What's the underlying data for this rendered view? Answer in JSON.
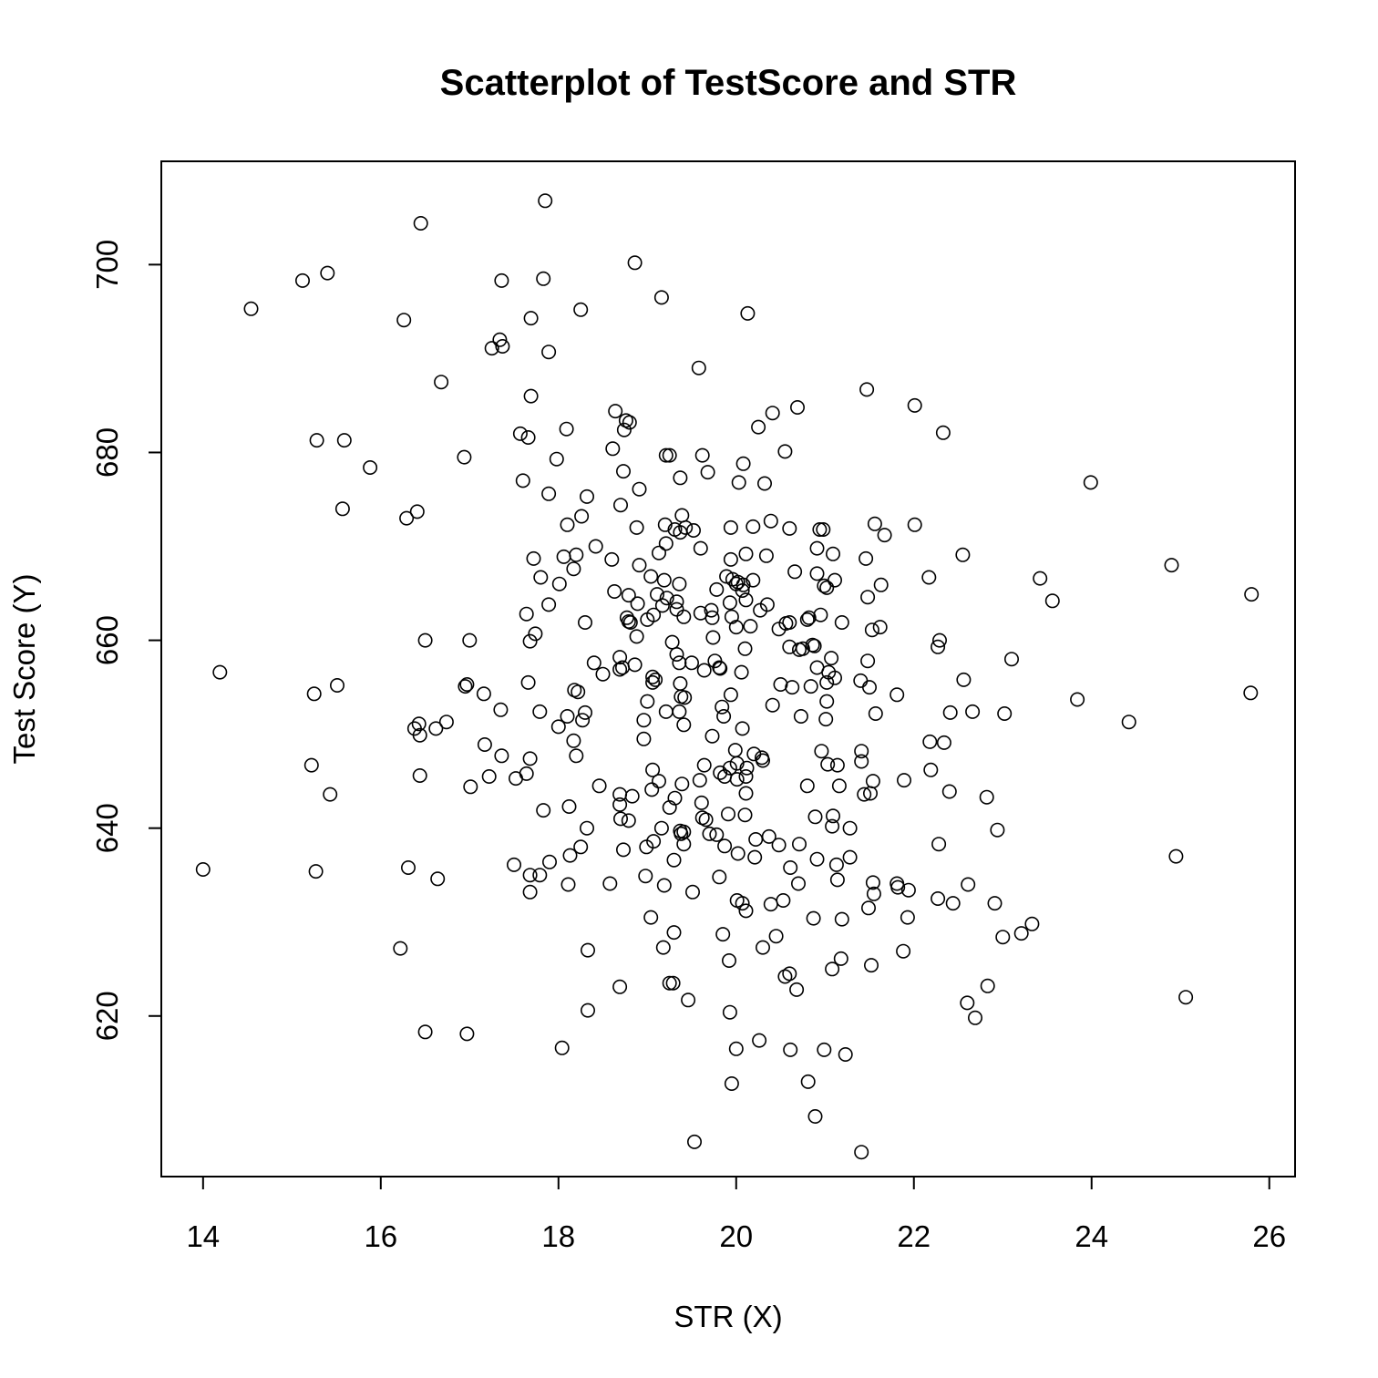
{
  "chart_data": {
    "type": "scatter",
    "title": "Scatterplot of TestScore and STR",
    "xlabel": "STR (X)",
    "ylabel": "Test Score (Y)",
    "xlim": [
      13.53,
      26.29
    ],
    "ylim": [
      602.9,
      711.0
    ],
    "xticks": [
      14,
      16,
      18,
      20,
      22,
      24,
      26
    ],
    "yticks": [
      620,
      640,
      660,
      680,
      700
    ],
    "grid": false,
    "legend": "none",
    "points": [
      [
        17.85,
        706.8
      ],
      [
        16.45,
        704.4
      ],
      [
        18.86,
        700.2
      ],
      [
        15.4,
        699.1
      ],
      [
        15.12,
        698.3
      ],
      [
        17.36,
        698.3
      ],
      [
        17.83,
        698.5
      ],
      [
        19.16,
        696.5
      ],
      [
        14.54,
        695.3
      ],
      [
        18.25,
        695.2
      ],
      [
        20.13,
        694.8
      ],
      [
        16.26,
        694.1
      ],
      [
        17.69,
        694.3
      ],
      [
        17.34,
        692.0
      ],
      [
        17.25,
        691.1
      ],
      [
        17.37,
        691.3
      ],
      [
        17.89,
        690.7
      ],
      [
        19.58,
        689.0
      ],
      [
        16.68,
        687.5
      ],
      [
        21.47,
        686.7
      ],
      [
        17.69,
        686.0
      ],
      [
        22.01,
        685.0
      ],
      [
        20.69,
        684.8
      ],
      [
        18.64,
        684.4
      ],
      [
        20.41,
        684.2
      ],
      [
        18.8,
        683.2
      ],
      [
        18.76,
        683.4
      ],
      [
        18.74,
        682.4
      ],
      [
        20.25,
        682.7
      ],
      [
        22.33,
        682.1
      ],
      [
        18.09,
        682.5
      ],
      [
        17.57,
        682.0
      ],
      [
        17.66,
        681.6
      ],
      [
        15.28,
        681.3
      ],
      [
        15.59,
        681.3
      ],
      [
        18.61,
        680.4
      ],
      [
        20.55,
        680.1
      ],
      [
        19.21,
        679.7
      ],
      [
        19.25,
        679.7
      ],
      [
        19.62,
        679.7
      ],
      [
        16.94,
        679.5
      ],
      [
        17.98,
        679.3
      ],
      [
        20.08,
        678.8
      ],
      [
        15.88,
        678.4
      ],
      [
        18.73,
        678.0
      ],
      [
        19.68,
        677.9
      ],
      [
        17.6,
        677.0
      ],
      [
        19.37,
        677.3
      ],
      [
        20.03,
        676.8
      ],
      [
        20.32,
        676.7
      ],
      [
        23.99,
        676.8
      ],
      [
        18.91,
        676.1
      ],
      [
        17.89,
        675.6
      ],
      [
        18.32,
        675.3
      ],
      [
        19.39,
        673.3
      ],
      [
        15.57,
        674.0
      ],
      [
        16.41,
        673.7
      ],
      [
        16.29,
        673.0
      ],
      [
        18.26,
        673.2
      ],
      [
        18.7,
        674.4
      ],
      [
        20.39,
        672.7
      ],
      [
        18.1,
        672.3
      ],
      [
        19.2,
        672.3
      ],
      [
        19.31,
        671.8
      ],
      [
        19.37,
        671.5
      ],
      [
        19.43,
        672.0
      ],
      [
        19.52,
        671.7
      ],
      [
        19.94,
        672.0
      ],
      [
        20.19,
        672.1
      ],
      [
        20.6,
        671.9
      ],
      [
        20.94,
        671.8
      ],
      [
        20.98,
        671.8
      ],
      [
        21.56,
        672.4
      ],
      [
        22.01,
        672.3
      ],
      [
        18.88,
        672.0
      ],
      [
        21.67,
        671.2
      ],
      [
        18.42,
        670.0
      ],
      [
        19.21,
        670.3
      ],
      [
        19.6,
        669.8
      ],
      [
        20.34,
        669.0
      ],
      [
        20.11,
        669.2
      ],
      [
        18.06,
        668.9
      ],
      [
        18.2,
        669.1
      ],
      [
        18.6,
        668.6
      ],
      [
        18.91,
        668.0
      ],
      [
        19.13,
        669.3
      ],
      [
        19.94,
        668.6
      ],
      [
        20.91,
        669.8
      ],
      [
        21.09,
        669.2
      ],
      [
        21.46,
        668.7
      ],
      [
        22.55,
        669.1
      ],
      [
        24.9,
        668.0
      ],
      [
        17.72,
        668.7
      ],
      [
        18.17,
        667.6
      ],
      [
        19.89,
        666.8
      ],
      [
        19.96,
        666.5
      ],
      [
        20.02,
        666.2
      ],
      [
        20.08,
        665.9
      ],
      [
        20.19,
        666.4
      ],
      [
        20.66,
        667.3
      ],
      [
        20.91,
        667.1
      ],
      [
        21.11,
        666.4
      ],
      [
        17.8,
        666.7
      ],
      [
        19.04,
        666.8
      ],
      [
        19.19,
        666.4
      ],
      [
        19.36,
        666.0
      ],
      [
        19.78,
        665.4
      ],
      [
        20.0,
        666.0
      ],
      [
        20.07,
        665.3
      ],
      [
        20.99,
        665.8
      ],
      [
        21.02,
        665.6
      ],
      [
        21.63,
        665.9
      ],
      [
        22.17,
        666.7
      ],
      [
        23.42,
        666.6
      ],
      [
        18.01,
        666.0
      ],
      [
        18.63,
        665.2
      ],
      [
        18.79,
        664.8
      ],
      [
        19.11,
        664.9
      ],
      [
        19.22,
        664.5
      ],
      [
        19.33,
        664.1
      ],
      [
        20.11,
        664.3
      ],
      [
        20.35,
        663.8
      ],
      [
        21.48,
        664.6
      ],
      [
        23.56,
        664.2
      ],
      [
        25.8,
        664.9
      ],
      [
        17.89,
        663.8
      ],
      [
        18.89,
        663.9
      ],
      [
        19.17,
        663.7
      ],
      [
        19.72,
        663.2
      ],
      [
        19.93,
        664.0
      ],
      [
        20.27,
        663.2
      ],
      [
        19.6,
        662.9
      ],
      [
        19.0,
        662.2
      ],
      [
        18.77,
        662.4
      ],
      [
        18.79,
        662.0
      ],
      [
        18.81,
        661.9
      ],
      [
        17.64,
        662.8
      ],
      [
        18.3,
        661.9
      ],
      [
        18.88,
        660.4
      ],
      [
        19.07,
        662.7
      ],
      [
        19.33,
        663.3
      ],
      [
        19.41,
        662.5
      ],
      [
        19.73,
        662.4
      ],
      [
        19.95,
        662.5
      ],
      [
        20.0,
        661.4
      ],
      [
        20.16,
        661.5
      ],
      [
        20.48,
        661.2
      ],
      [
        20.56,
        661.8
      ],
      [
        20.6,
        661.9
      ],
      [
        20.8,
        662.2
      ],
      [
        20.82,
        662.4
      ],
      [
        20.95,
        662.7
      ],
      [
        21.19,
        661.9
      ],
      [
        21.53,
        661.1
      ],
      [
        21.62,
        661.4
      ],
      [
        22.29,
        660.0
      ],
      [
        22.27,
        659.3
      ],
      [
        19.74,
        660.3
      ],
      [
        17.74,
        660.7
      ],
      [
        17.68,
        659.9
      ],
      [
        17.0,
        660.0
      ],
      [
        16.5,
        660.0
      ],
      [
        14.19,
        656.6
      ],
      [
        16.95,
        655.1
      ],
      [
        16.97,
        655.3
      ],
      [
        17.16,
        654.3
      ],
      [
        15.25,
        654.3
      ],
      [
        15.51,
        655.2
      ],
      [
        17.66,
        655.5
      ],
      [
        18.18,
        654.7
      ],
      [
        18.22,
        654.5
      ],
      [
        19.06,
        655.5
      ],
      [
        19.06,
        656.1
      ],
      [
        19.09,
        655.8
      ],
      [
        19.37,
        655.4
      ],
      [
        19.38,
        654.0
      ],
      [
        19.64,
        656.8
      ],
      [
        19.76,
        657.8
      ],
      [
        19.82,
        657.0
      ],
      [
        19.94,
        654.2
      ],
      [
        20.06,
        656.6
      ],
      [
        20.5,
        655.3
      ],
      [
        20.63,
        655.0
      ],
      [
        20.84,
        655.1
      ],
      [
        20.91,
        657.1
      ],
      [
        21.02,
        655.5
      ],
      [
        21.04,
        656.6
      ],
      [
        21.11,
        656.0
      ],
      [
        21.4,
        655.7
      ],
      [
        21.48,
        657.8
      ],
      [
        21.5,
        655.0
      ],
      [
        21.81,
        654.2
      ],
      [
        22.56,
        655.8
      ],
      [
        23.1,
        658.0
      ],
      [
        23.84,
        653.7
      ],
      [
        25.79,
        654.4
      ],
      [
        18.4,
        657.6
      ],
      [
        18.5,
        656.4
      ],
      [
        18.69,
        656.9
      ],
      [
        18.72,
        657.1
      ],
      [
        18.69,
        658.2
      ],
      [
        18.86,
        657.4
      ],
      [
        19.28,
        659.8
      ],
      [
        19.33,
        658.5
      ],
      [
        19.36,
        657.6
      ],
      [
        19.5,
        657.6
      ],
      [
        19.81,
        657.1
      ],
      [
        20.1,
        659.1
      ],
      [
        20.6,
        659.3
      ],
      [
        20.71,
        659.0
      ],
      [
        20.75,
        659.1
      ],
      [
        20.86,
        659.5
      ],
      [
        20.88,
        659.4
      ],
      [
        21.07,
        658.1
      ],
      [
        19.0,
        653.5
      ],
      [
        19.21,
        652.4
      ],
      [
        19.42,
        653.9
      ],
      [
        19.84,
        652.9
      ],
      [
        20.41,
        653.1
      ],
      [
        20.73,
        651.9
      ],
      [
        21.02,
        653.5
      ],
      [
        21.57,
        652.2
      ],
      [
        22.41,
        652.3
      ],
      [
        22.66,
        652.4
      ],
      [
        23.02,
        652.2
      ],
      [
        24.42,
        651.3
      ],
      [
        18.3,
        652.3
      ],
      [
        18.27,
        651.5
      ],
      [
        18.1,
        651.9
      ],
      [
        17.35,
        652.6
      ],
      [
        17.79,
        652.4
      ],
      [
        16.74,
        651.3
      ],
      [
        16.43,
        651.1
      ],
      [
        16.38,
        650.6
      ],
      [
        16.44,
        649.9
      ],
      [
        16.62,
        650.6
      ],
      [
        18.0,
        650.8
      ],
      [
        18.96,
        651.5
      ],
      [
        19.36,
        652.4
      ],
      [
        19.41,
        651.0
      ],
      [
        19.86,
        651.9
      ],
      [
        20.07,
        650.6
      ],
      [
        21.01,
        651.6
      ],
      [
        17.17,
        648.9
      ],
      [
        17.36,
        647.7
      ],
      [
        17.68,
        647.4
      ],
      [
        18.2,
        647.7
      ],
      [
        18.17,
        649.3
      ],
      [
        18.96,
        649.5
      ],
      [
        19.06,
        646.2
      ],
      [
        19.13,
        645.0
      ],
      [
        19.73,
        649.8
      ],
      [
        19.99,
        648.3
      ],
      [
        20.12,
        646.4
      ],
      [
        20.2,
        647.9
      ],
      [
        20.29,
        647.5
      ],
      [
        20.3,
        647.2
      ],
      [
        20.96,
        648.2
      ],
      [
        21.03,
        646.8
      ],
      [
        21.14,
        646.7
      ],
      [
        21.41,
        648.2
      ],
      [
        21.41,
        647.1
      ],
      [
        22.18,
        649.2
      ],
      [
        22.34,
        649.1
      ],
      [
        20.01,
        646.9
      ],
      [
        19.93,
        646.4
      ],
      [
        19.64,
        646.7
      ],
      [
        19.87,
        645.5
      ],
      [
        20.01,
        645.2
      ],
      [
        20.11,
        645.5
      ],
      [
        21.54,
        645.0
      ],
      [
        21.16,
        644.5
      ],
      [
        20.8,
        644.5
      ],
      [
        17.64,
        645.8
      ],
      [
        17.22,
        645.5
      ],
      [
        17.52,
        645.3
      ],
      [
        16.44,
        645.6
      ],
      [
        15.22,
        646.7
      ],
      [
        17.01,
        644.4
      ],
      [
        18.46,
        644.5
      ],
      [
        19.39,
        644.7
      ],
      [
        19.59,
        645.1
      ],
      [
        21.89,
        645.1
      ],
      [
        22.19,
        646.2
      ],
      [
        15.43,
        643.6
      ],
      [
        18.69,
        643.6
      ],
      [
        18.83,
        643.4
      ],
      [
        18.69,
        642.5
      ],
      [
        19.05,
        644.1
      ],
      [
        19.25,
        642.2
      ],
      [
        19.31,
        643.2
      ],
      [
        19.61,
        642.7
      ],
      [
        19.82,
        645.9
      ],
      [
        20.11,
        643.7
      ],
      [
        21.44,
        643.6
      ],
      [
        21.51,
        643.7
      ],
      [
        22.4,
        643.9
      ],
      [
        22.82,
        643.3
      ],
      [
        17.83,
        641.9
      ],
      [
        18.12,
        642.3
      ],
      [
        18.7,
        641.0
      ],
      [
        18.79,
        640.8
      ],
      [
        19.62,
        641.1
      ],
      [
        19.66,
        640.9
      ],
      [
        19.91,
        641.5
      ],
      [
        20.1,
        641.4
      ],
      [
        20.89,
        641.2
      ],
      [
        21.09,
        641.3
      ],
      [
        19.16,
        640.0
      ],
      [
        19.37,
        639.7
      ],
      [
        19.38,
        639.4
      ],
      [
        19.41,
        639.6
      ],
      [
        19.7,
        639.4
      ],
      [
        19.78,
        639.3
      ],
      [
        20.22,
        638.8
      ],
      [
        20.37,
        639.1
      ],
      [
        20.48,
        638.2
      ],
      [
        20.71,
        638.3
      ],
      [
        21.08,
        640.2
      ],
      [
        21.28,
        640.0
      ],
      [
        22.94,
        639.8
      ],
      [
        18.32,
        640.0
      ],
      [
        17.9,
        636.4
      ],
      [
        18.13,
        637.1
      ],
      [
        18.25,
        638.0
      ],
      [
        18.73,
        637.7
      ],
      [
        18.99,
        638.0
      ],
      [
        19.07,
        638.6
      ],
      [
        19.3,
        636.6
      ],
      [
        19.41,
        638.3
      ],
      [
        19.87,
        638.1
      ],
      [
        20.02,
        637.3
      ],
      [
        20.21,
        636.9
      ],
      [
        20.61,
        635.8
      ],
      [
        20.91,
        636.7
      ],
      [
        21.13,
        636.1
      ],
      [
        21.28,
        636.9
      ],
      [
        22.28,
        638.3
      ],
      [
        24.95,
        637.0
      ],
      [
        17.5,
        636.1
      ],
      [
        16.31,
        635.8
      ],
      [
        15.27,
        635.4
      ],
      [
        14.0,
        635.6
      ],
      [
        17.68,
        635.0
      ],
      [
        17.79,
        635.0
      ],
      [
        16.64,
        634.6
      ],
      [
        18.11,
        634.0
      ],
      [
        18.58,
        634.1
      ],
      [
        18.98,
        634.9
      ],
      [
        19.19,
        633.9
      ],
      [
        19.81,
        634.8
      ],
      [
        20.7,
        634.1
      ],
      [
        21.14,
        634.5
      ],
      [
        21.54,
        634.2
      ],
      [
        21.81,
        634.1
      ],
      [
        21.82,
        633.7
      ],
      [
        22.27,
        632.5
      ],
      [
        22.61,
        634.0
      ],
      [
        17.68,
        633.2
      ],
      [
        19.51,
        633.2
      ],
      [
        20.01,
        632.3
      ],
      [
        20.07,
        632.0
      ],
      [
        20.39,
        631.9
      ],
      [
        20.53,
        632.3
      ],
      [
        21.55,
        633.0
      ],
      [
        21.94,
        633.4
      ],
      [
        22.44,
        632.0
      ],
      [
        22.91,
        632.0
      ],
      [
        19.04,
        630.5
      ],
      [
        20.11,
        631.2
      ],
      [
        20.87,
        630.4
      ],
      [
        21.19,
        630.3
      ],
      [
        21.49,
        631.5
      ],
      [
        21.93,
        630.5
      ],
      [
        23.0,
        628.4
      ],
      [
        23.21,
        628.8
      ],
      [
        23.33,
        629.8
      ],
      [
        16.22,
        627.2
      ],
      [
        18.33,
        627.0
      ],
      [
        19.18,
        627.3
      ],
      [
        19.3,
        628.9
      ],
      [
        19.85,
        628.7
      ],
      [
        20.3,
        627.3
      ],
      [
        20.45,
        628.5
      ],
      [
        21.88,
        626.9
      ],
      [
        19.92,
        625.9
      ],
      [
        20.55,
        624.2
      ],
      [
        20.6,
        624.5
      ],
      [
        20.68,
        622.8
      ],
      [
        21.08,
        625.0
      ],
      [
        21.18,
        626.1
      ],
      [
        21.52,
        625.4
      ],
      [
        18.69,
        623.1
      ],
      [
        19.25,
        623.5
      ],
      [
        19.29,
        623.5
      ],
      [
        19.46,
        621.7
      ],
      [
        22.6,
        621.4
      ],
      [
        22.69,
        619.8
      ],
      [
        22.83,
        623.2
      ],
      [
        25.06,
        622.0
      ],
      [
        18.33,
        620.6
      ],
      [
        19.93,
        620.4
      ],
      [
        16.5,
        618.3
      ],
      [
        16.97,
        618.1
      ],
      [
        18.04,
        616.6
      ],
      [
        20.0,
        616.5
      ],
      [
        20.26,
        617.4
      ],
      [
        20.61,
        616.4
      ],
      [
        20.99,
        616.4
      ],
      [
        21.23,
        615.9
      ],
      [
        19.95,
        612.8
      ],
      [
        20.81,
        613.0
      ],
      [
        20.89,
        609.3
      ],
      [
        19.53,
        606.6
      ],
      [
        21.41,
        605.5
      ]
    ]
  }
}
